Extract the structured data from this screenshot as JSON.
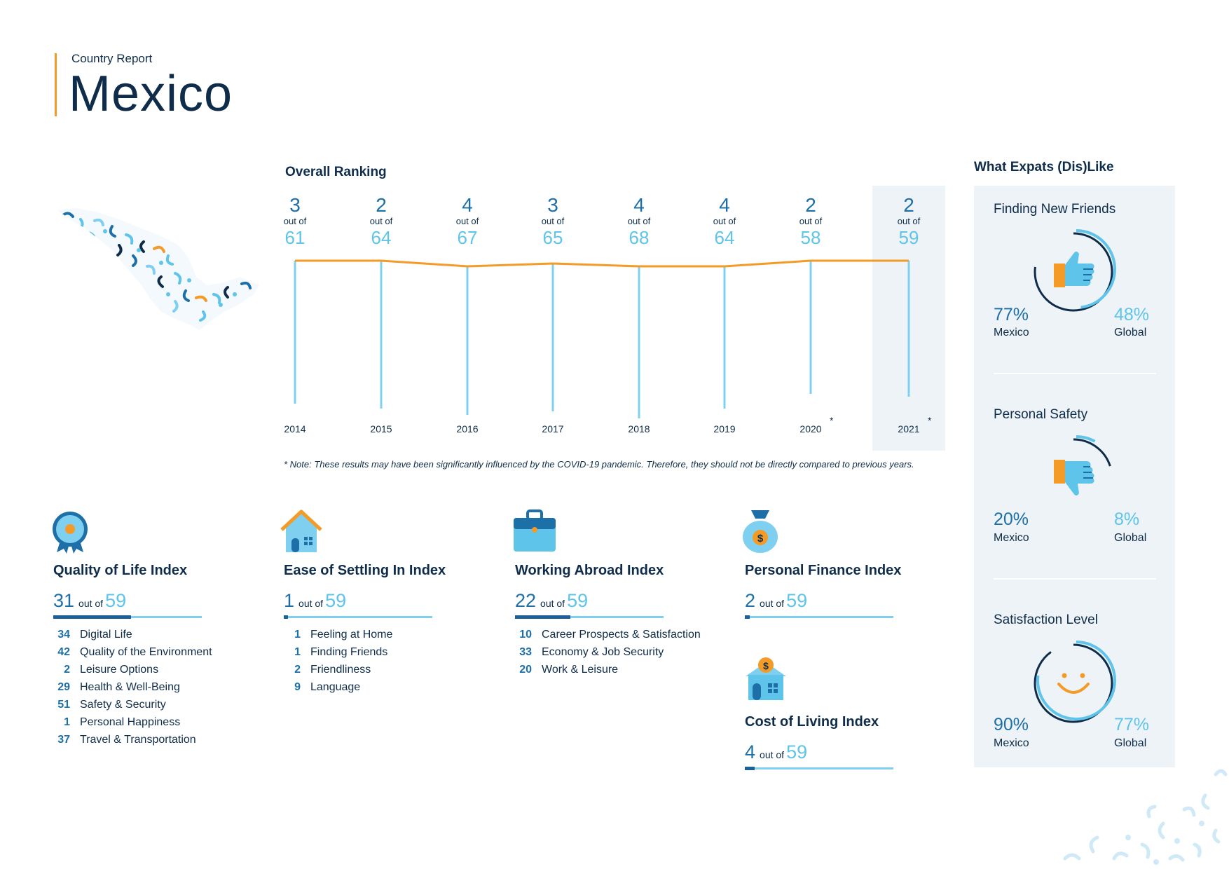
{
  "header": {
    "subtitle": "Country Report",
    "country": "Mexico"
  },
  "ranking": {
    "title": "Overall Ranking",
    "out_of_label": "out of",
    "years": [
      {
        "year": "2014",
        "rank": "3",
        "total": "61",
        "note": ""
      },
      {
        "year": "2015",
        "rank": "2",
        "total": "64",
        "note": ""
      },
      {
        "year": "2016",
        "rank": "4",
        "total": "67",
        "note": ""
      },
      {
        "year": "2017",
        "rank": "3",
        "total": "65",
        "note": ""
      },
      {
        "year": "2018",
        "rank": "4",
        "total": "68",
        "note": ""
      },
      {
        "year": "2019",
        "rank": "4",
        "total": "64",
        "note": ""
      },
      {
        "year": "2020",
        "rank": "2",
        "total": "58",
        "note": "*"
      },
      {
        "year": "2021",
        "rank": "2",
        "total": "59",
        "note": "*"
      }
    ],
    "footnote": "* Note: These results may have been significantly influenced by the COVID-19 pandemic. Therefore, they should not be directly compared to previous years.",
    "colors": {
      "line": "#f39a27",
      "stem": "#7fd0f0",
      "highlight": "#eef3f8"
    }
  },
  "indexes": {
    "out_of_label": "out of",
    "quality_of_life": {
      "title": "Quality of Life Index",
      "rank": "31",
      "total": "59",
      "rank_value": 31,
      "total_value": 59,
      "items": [
        {
          "rank": "34",
          "label": "Digital Life"
        },
        {
          "rank": "42",
          "label": "Quality of the Environment"
        },
        {
          "rank": "2",
          "label": "Leisure Options"
        },
        {
          "rank": "29",
          "label": "Health & Well-Being"
        },
        {
          "rank": "51",
          "label": "Safety & Security"
        },
        {
          "rank": "1",
          "label": "Personal Happiness"
        },
        {
          "rank": "37",
          "label": "Travel & Transportation"
        }
      ]
    },
    "ease_of_settling_in": {
      "title": "Ease of Settling In Index",
      "rank": "1",
      "total": "59",
      "rank_value": 1,
      "total_value": 59,
      "items": [
        {
          "rank": "1",
          "label": "Feeling at Home"
        },
        {
          "rank": "1",
          "label": "Finding Friends"
        },
        {
          "rank": "2",
          "label": "Friendliness"
        },
        {
          "rank": "9",
          "label": "Language"
        }
      ]
    },
    "working_abroad": {
      "title": "Working Abroad Index",
      "rank": "22",
      "total": "59",
      "rank_value": 22,
      "total_value": 59,
      "items": [
        {
          "rank": "10",
          "label": "Career Prospects & Satisfaction"
        },
        {
          "rank": "33",
          "label": "Economy & Job Security"
        },
        {
          "rank": "20",
          "label": "Work & Leisure"
        }
      ]
    },
    "personal_finance": {
      "title": "Personal Finance Index",
      "rank": "2",
      "total": "59",
      "rank_value": 2,
      "total_value": 59
    },
    "cost_of_living": {
      "title": "Cost of Living Index",
      "rank": "4",
      "total": "59",
      "rank_value": 4,
      "total_value": 59
    }
  },
  "expats_dislike": {
    "title": "What Expats (Dis)Like",
    "mexico_label": "Mexico",
    "global_label": "Global",
    "sections": [
      {
        "label": "Finding New Friends",
        "mexico": "77%",
        "global": "48%",
        "mexico_value": 77,
        "global_value": 48,
        "icon": "thumbs-up-icon"
      },
      {
        "label": "Personal Safety",
        "mexico": "20%",
        "global": "8%",
        "mexico_value": 20,
        "global_value": 8,
        "icon": "thumbs-down-icon"
      },
      {
        "label": "Satisfaction Level",
        "mexico": "90%",
        "global": "77%",
        "mexico_value": 90,
        "global_value": 77,
        "icon": "smiley-icon"
      }
    ]
  },
  "colors": {
    "navy": "#0f2d4a",
    "blue": "#1d6fa8",
    "light_blue": "#5ec4ea",
    "orange": "#f39a27",
    "panel": "#eef3f8"
  }
}
